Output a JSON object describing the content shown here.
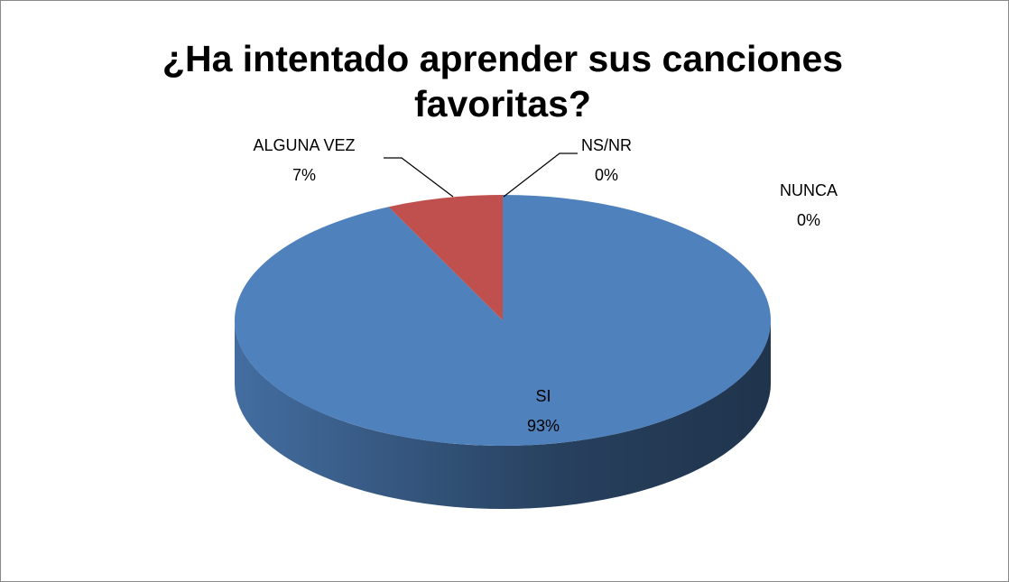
{
  "chart_data": {
    "type": "pie",
    "title": "¿Ha intentado aprender sus canciones favoritas?",
    "categories": [
      "SI",
      "NUNCA",
      "ALGUNA VEZ",
      "NS/NR"
    ],
    "values": [
      93,
      0,
      7,
      0
    ],
    "value_labels": [
      "93%",
      "0%",
      "7%",
      "0%"
    ],
    "colors": [
      "#4f81bd",
      "#9bbb59",
      "#c0504d",
      "#8064a2"
    ]
  }
}
